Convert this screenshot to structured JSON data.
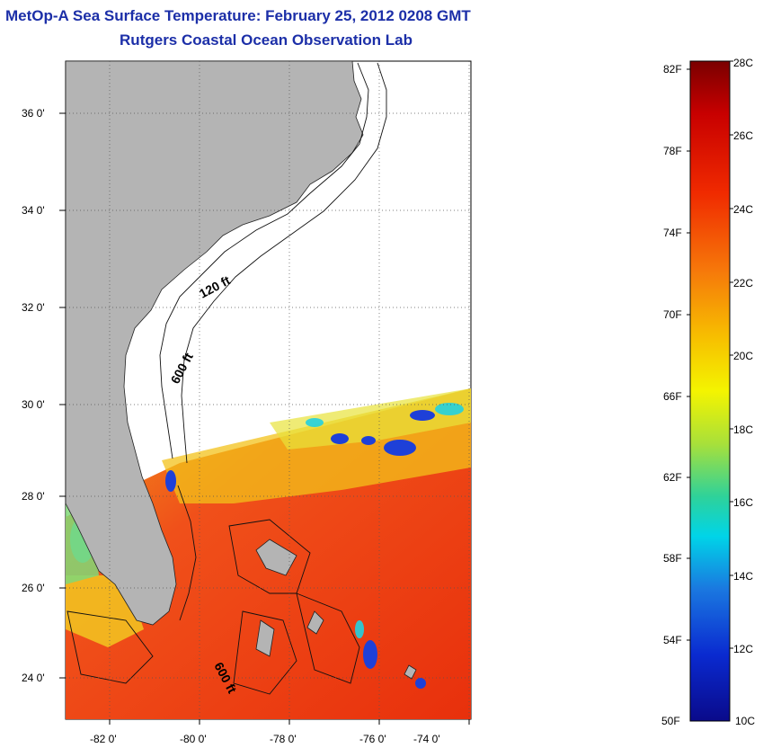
{
  "title": {
    "line1": "MetOp-A Sea Surface Temperature:  February 25, 2012 0208 GMT",
    "line2": "Rutgers Coastal Ocean Observation Lab"
  },
  "map": {
    "lat_ticks": [
      "36 0'",
      "34 0'",
      "32 0'",
      "30 0'",
      "28 0'",
      "26 0'",
      "24 0'"
    ],
    "lon_ticks": [
      "-82 0'",
      "-80 0'",
      "-78 0'",
      "-76 0'",
      "-74 0'"
    ],
    "contour_labels": [
      "120 ft",
      "600 ft",
      "600 ft"
    ]
  },
  "colorbar": {
    "fahrenheit": [
      "82F",
      "78F",
      "74F",
      "70F",
      "66F",
      "62F",
      "58F",
      "54F",
      "50F"
    ],
    "celsius": [
      "28C",
      "26C",
      "24C",
      "22C",
      "20C",
      "18C",
      "16C",
      "14C",
      "12C",
      "10C"
    ],
    "colors": {
      "warm": "#e8360c",
      "orange": "#f39c12",
      "yellow": "#f2f200",
      "cyan": "#00d8e8",
      "blue": "#0a1aa0",
      "land": "#b4b4b4"
    }
  }
}
